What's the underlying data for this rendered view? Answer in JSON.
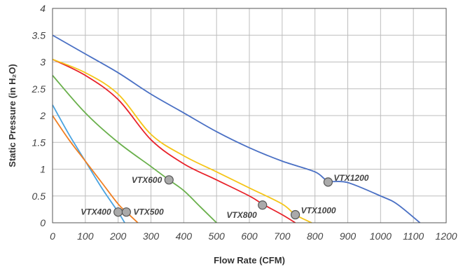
{
  "chart_data": {
    "type": "line",
    "title": "",
    "xlabel": "Flow Rate (CFM)",
    "ylabel": "Static Pressure (in H₂O)",
    "xlim": [
      0,
      1200
    ],
    "ylim": [
      0,
      4
    ],
    "xticks": [
      0,
      100,
      200,
      300,
      400,
      500,
      600,
      700,
      800,
      900,
      1000,
      1100,
      1200
    ],
    "yticks": [
      0,
      0.5,
      1,
      1.5,
      2,
      2.5,
      3,
      3.5,
      4
    ],
    "grid": true,
    "colors": {
      "VTX400": "#4aa3e0",
      "VTX500": "#f07f22",
      "VTX600": "#6ab04c",
      "VTX800": "#e8222a",
      "VTX1000": "#f5c518",
      "VTX1200": "#4a70c4",
      "point_fill": "#aaaaaa",
      "point_stroke": "#555555"
    },
    "series": [
      {
        "id": "VTX400",
        "x": [
          0,
          50,
          100,
          150,
          200,
          220
        ],
        "y": [
          2.2,
          1.65,
          1.15,
          0.65,
          0.2,
          0
        ]
      },
      {
        "id": "VTX500",
        "x": [
          0,
          50,
          100,
          150,
          200,
          225,
          260
        ],
        "y": [
          2.0,
          1.55,
          1.15,
          0.75,
          0.35,
          0.2,
          0
        ]
      },
      {
        "id": "VTX600",
        "x": [
          0,
          100,
          200,
          300,
          355,
          400,
          450,
          500
        ],
        "y": [
          2.75,
          2.05,
          1.5,
          1.05,
          0.8,
          0.6,
          0.3,
          0
        ]
      },
      {
        "id": "VTX800",
        "x": [
          0,
          100,
          200,
          300,
          400,
          500,
          600,
          640,
          700,
          740
        ],
        "y": [
          3.05,
          2.75,
          2.3,
          1.55,
          1.1,
          0.8,
          0.5,
          0.35,
          0.15,
          0
        ]
      },
      {
        "id": "VTX1000",
        "x": [
          0,
          100,
          200,
          300,
          400,
          500,
          600,
          700,
          740,
          790
        ],
        "y": [
          3.05,
          2.8,
          2.4,
          1.65,
          1.25,
          0.95,
          0.65,
          0.35,
          0.15,
          0
        ]
      },
      {
        "id": "VTX1200",
        "x": [
          0,
          100,
          200,
          300,
          400,
          500,
          600,
          700,
          800,
          840,
          900,
          1000,
          1050,
          1120
        ],
        "y": [
          3.5,
          3.15,
          2.8,
          2.4,
          2.05,
          1.7,
          1.4,
          1.15,
          0.95,
          0.78,
          0.75,
          0.5,
          0.35,
          0
        ]
      }
    ],
    "points": [
      {
        "label": "VTX400",
        "x": 200,
        "y": 0.2,
        "label_side": "left"
      },
      {
        "label": "VTX500",
        "x": 225,
        "y": 0.2,
        "label_side": "right"
      },
      {
        "label": "VTX600",
        "x": 355,
        "y": 0.8,
        "label_side": "left"
      },
      {
        "label": "VTX800",
        "x": 640,
        "y": 0.33,
        "label_side": "below-left"
      },
      {
        "label": "VTX1000",
        "x": 740,
        "y": 0.15,
        "label_side": "right-up"
      },
      {
        "label": "VTX1200",
        "x": 840,
        "y": 0.76,
        "label_side": "right-up"
      }
    ]
  }
}
